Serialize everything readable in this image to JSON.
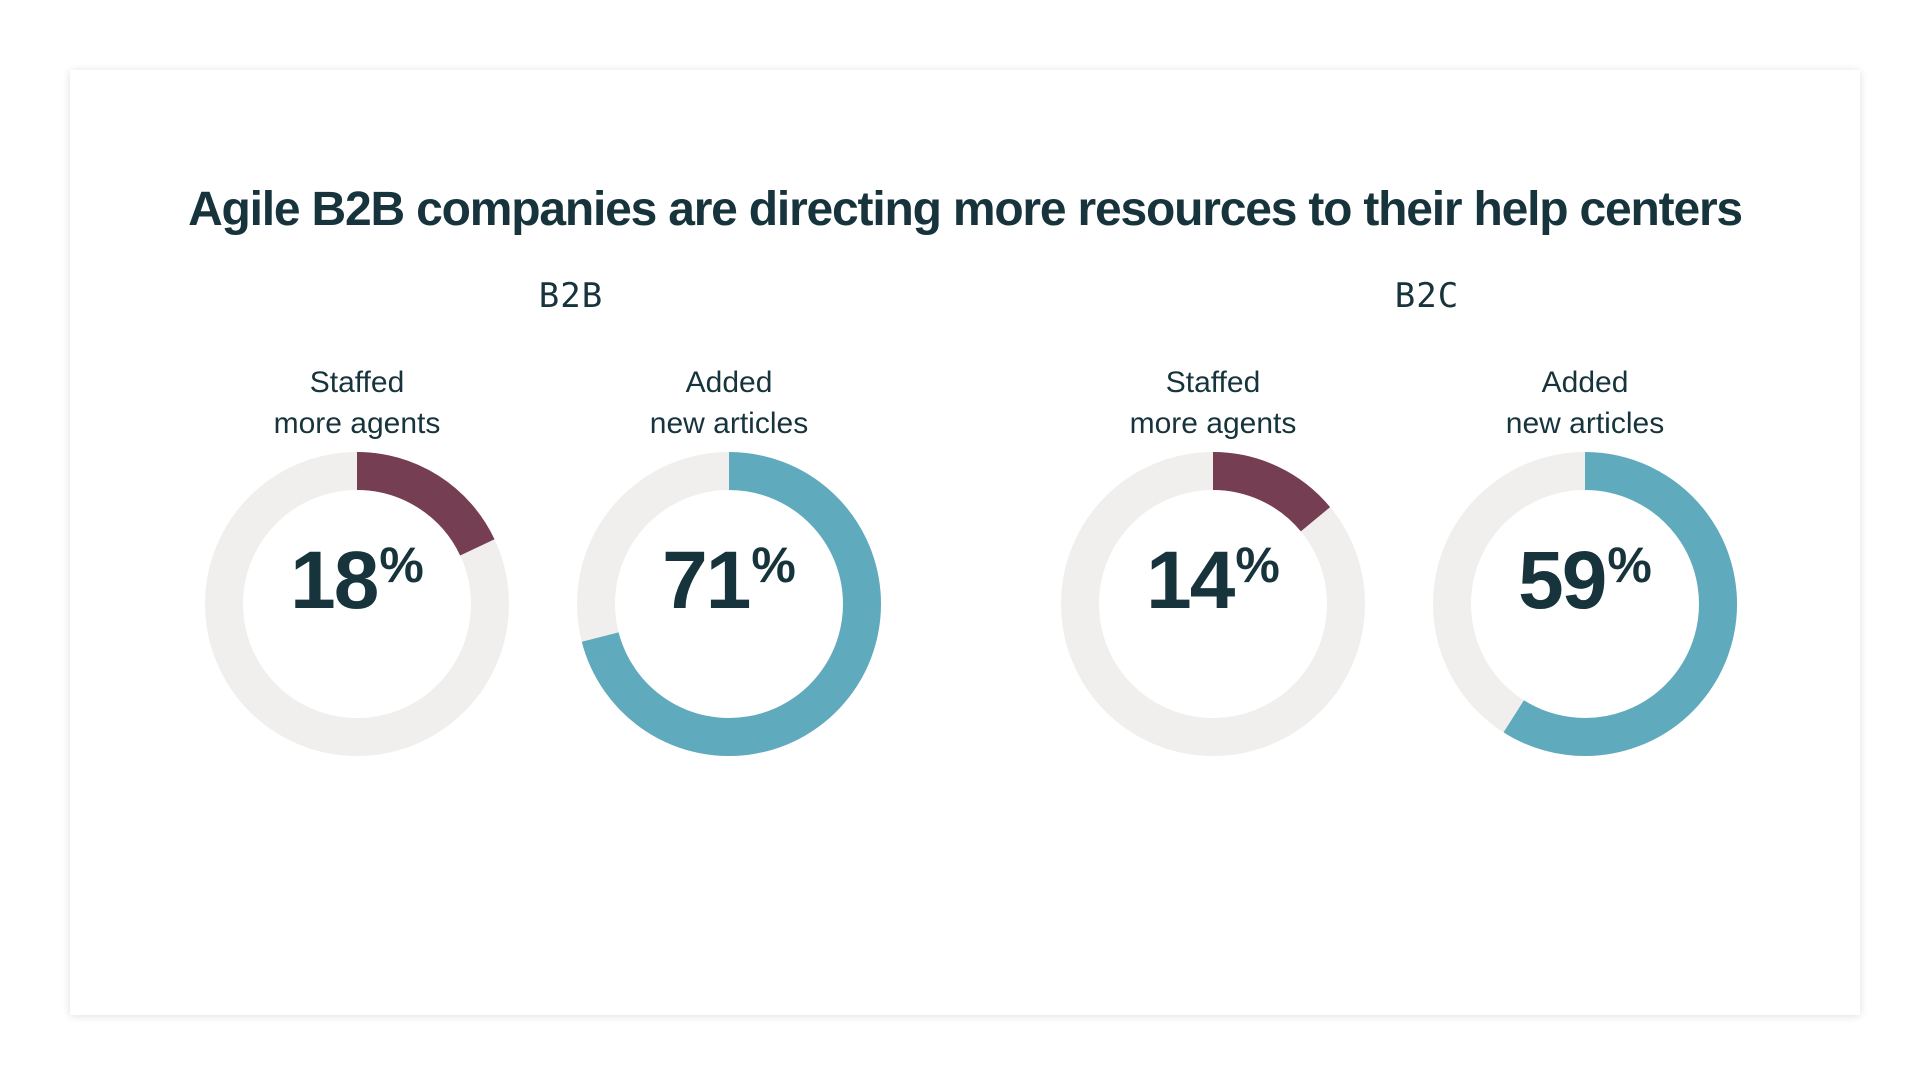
{
  "title": "Agile B2B companies are directing more resources to their help centers",
  "colors": {
    "track": "#f0efed",
    "agents": "#763e53",
    "articles": "#60aabd",
    "text": "#17343d"
  },
  "chart_data": {
    "type": "pie",
    "title": "Agile B2B companies are directing more resources to their help centers",
    "groups": [
      {
        "name": "B2B",
        "donuts": [
          {
            "label_lines": [
              "Staffed",
              "more agents"
            ],
            "value": 18,
            "value_text": "18",
            "unit": "%",
            "color": "#763e53"
          },
          {
            "label_lines": [
              "Added",
              "new articles"
            ],
            "value": 71,
            "value_text": "71",
            "unit": "%",
            "color": "#60aabd"
          }
        ]
      },
      {
        "name": "B2C",
        "donuts": [
          {
            "label_lines": [
              "Staffed",
              "more agents"
            ],
            "value": 14,
            "value_text": "14",
            "unit": "%",
            "color": "#763e53"
          },
          {
            "label_lines": [
              "Added",
              "new articles"
            ],
            "value": 59,
            "value_text": "59",
            "unit": "%",
            "color": "#60aabd"
          }
        ]
      }
    ]
  }
}
